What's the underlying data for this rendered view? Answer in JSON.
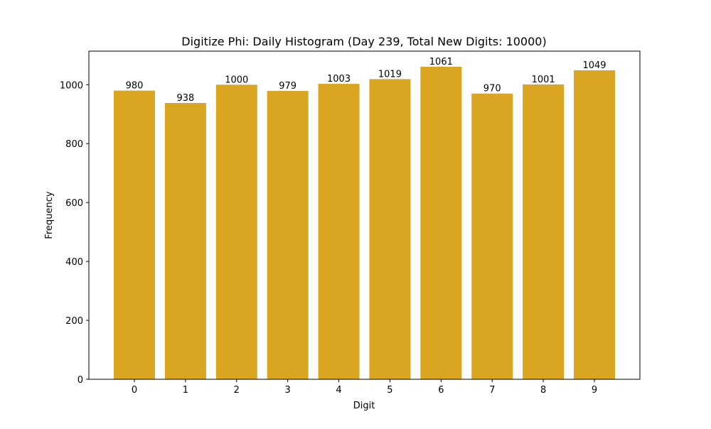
{
  "chart_data": {
    "type": "bar",
    "title": "Digitize Phi: Daily Histogram (Day 239, Total New Digits: 10000)",
    "xlabel": "Digit",
    "ylabel": "Frequency",
    "categories": [
      "0",
      "1",
      "2",
      "3",
      "4",
      "5",
      "6",
      "7",
      "8",
      "9"
    ],
    "values": [
      980,
      938,
      1000,
      979,
      1003,
      1019,
      1061,
      970,
      1001,
      1049
    ],
    "ylim": [
      0,
      1114
    ],
    "yticks": [
      0,
      200,
      400,
      600,
      800,
      1000
    ],
    "bar_color": "#DAA520",
    "grid": false,
    "legend": null
  }
}
